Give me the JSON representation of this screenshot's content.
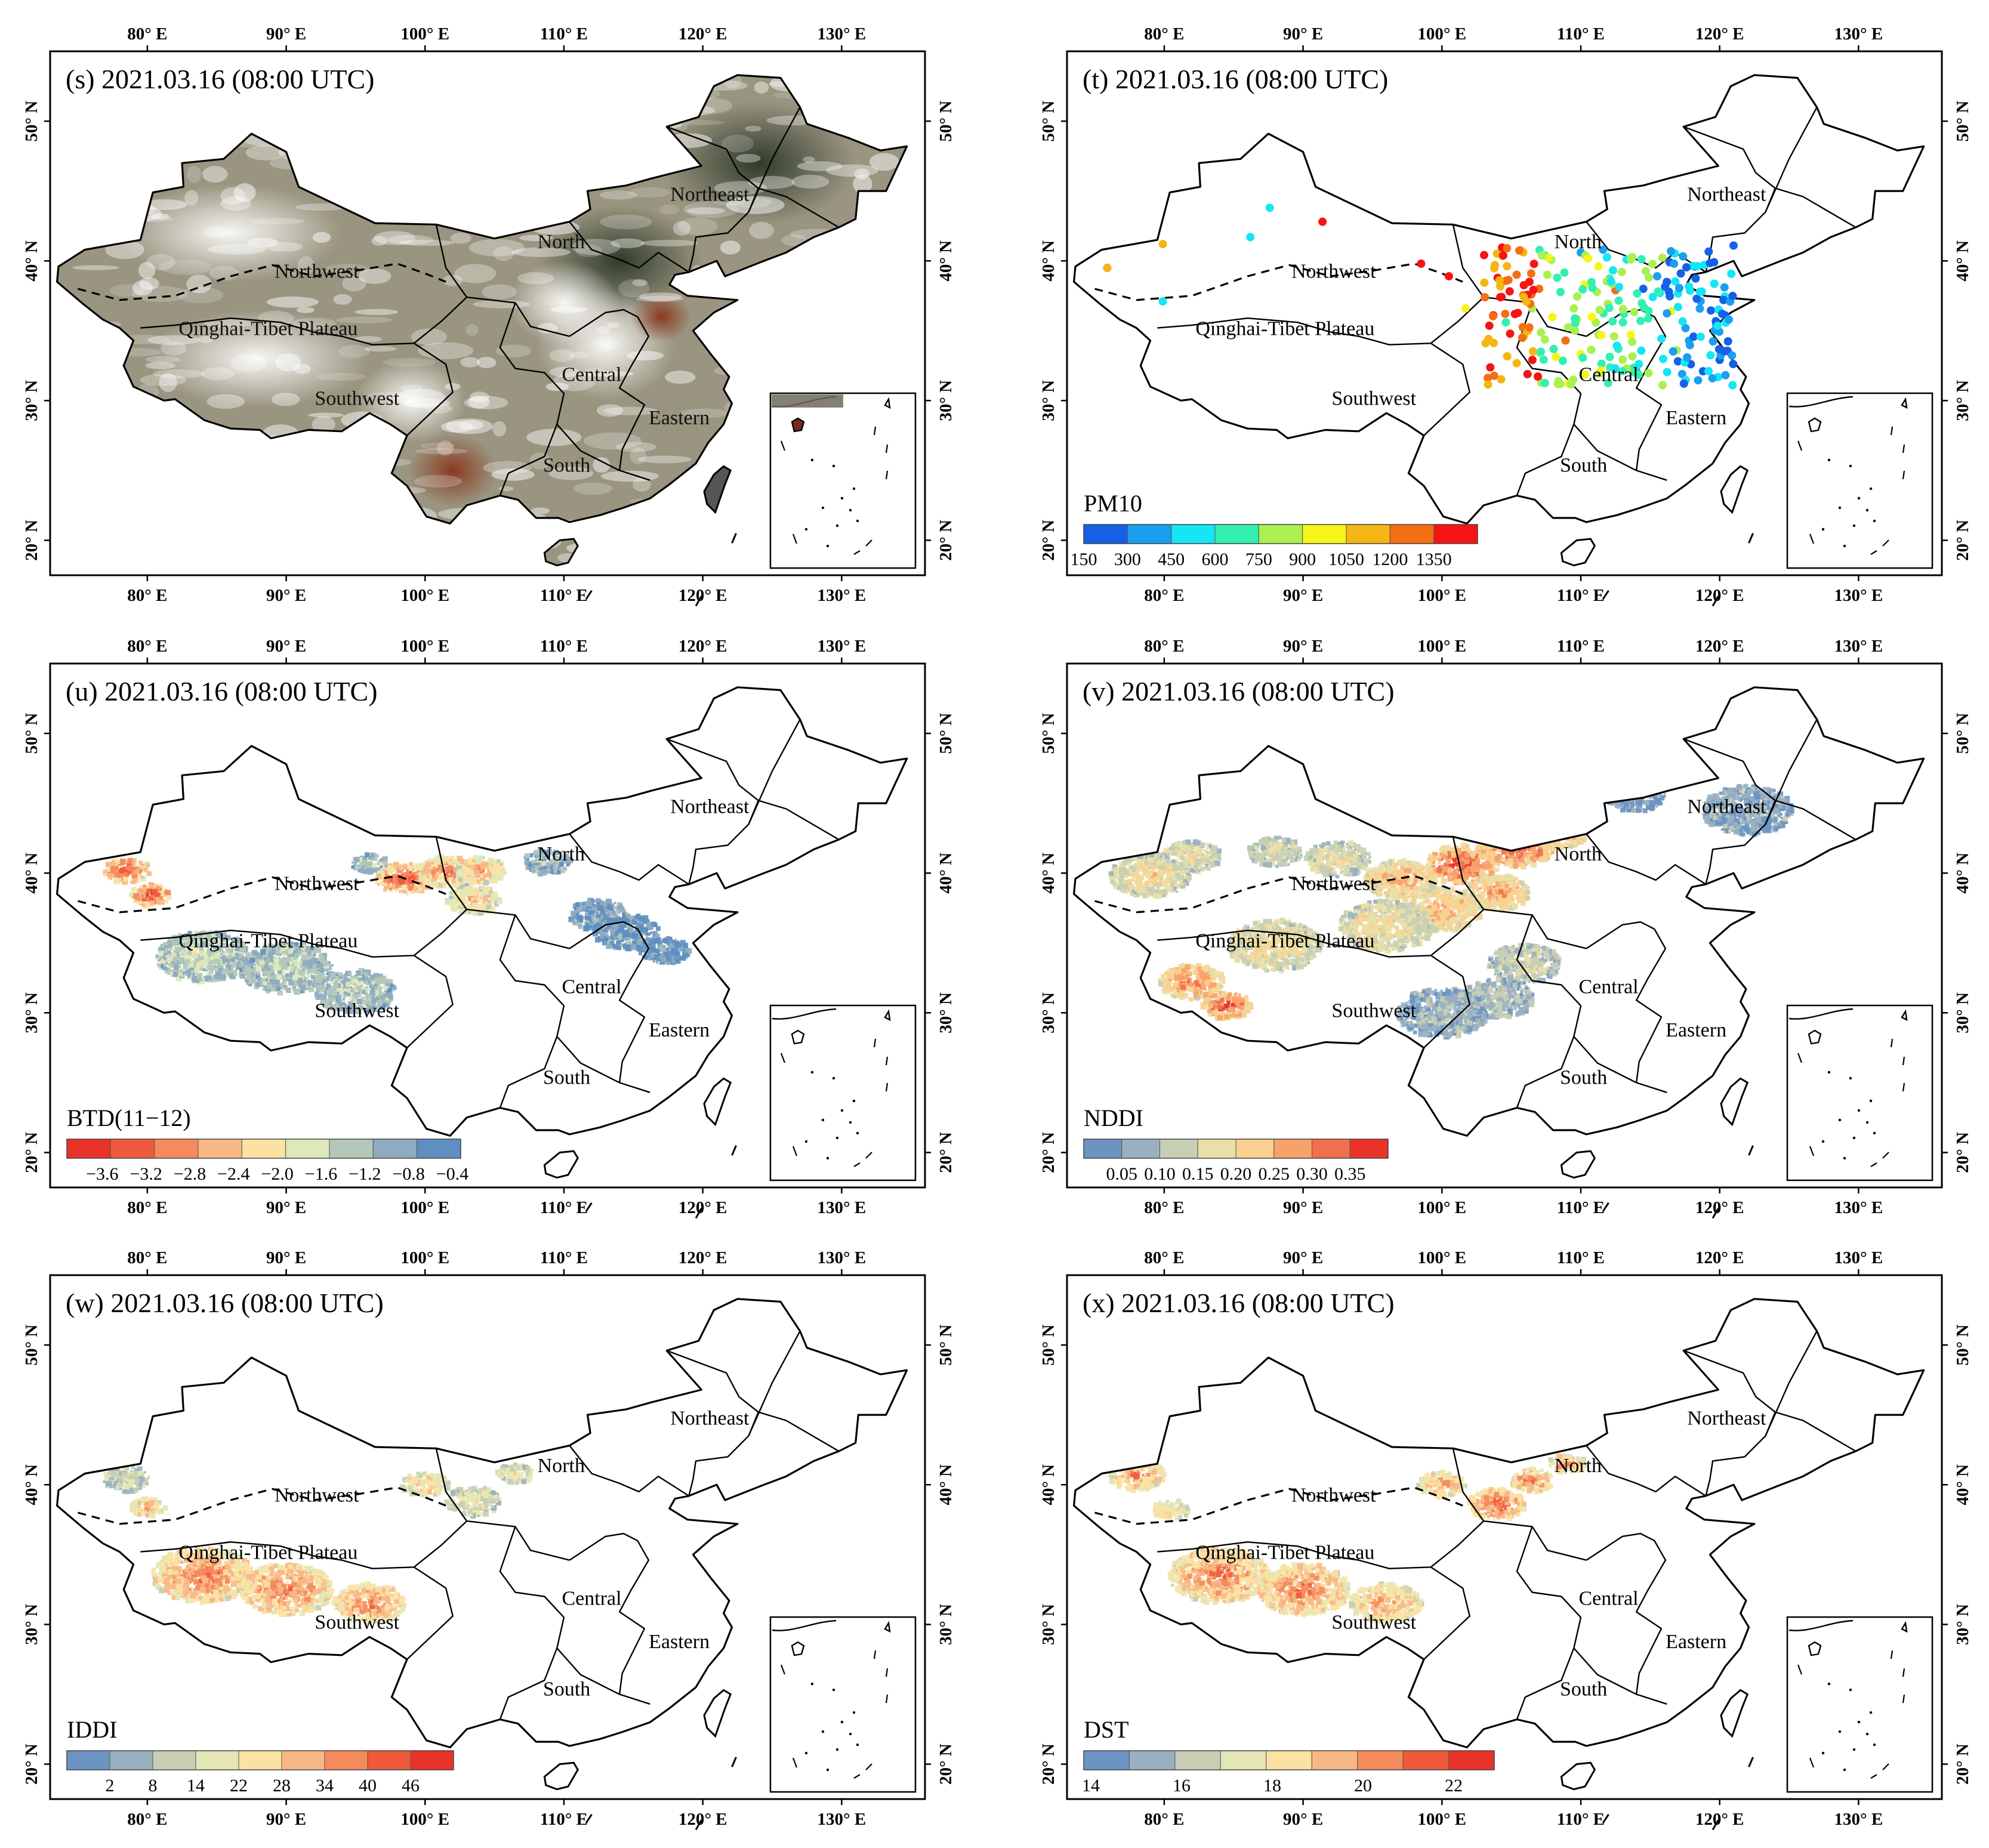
{
  "figure": {
    "lon_ticks": [
      "80° E",
      "90° E",
      "100° E",
      "110° E",
      "120° E",
      "130° E"
    ],
    "lat_ticks": [
      "50° N",
      "40° N",
      "30° N",
      "20° N"
    ],
    "regions": [
      {
        "name": "Northeast",
        "lon": 120.5,
        "lat": 44.3
      },
      {
        "name": "North",
        "lon": 109.8,
        "lat": 40.9
      },
      {
        "name": "Northwest",
        "lon": 92.2,
        "lat": 38.8
      },
      {
        "name": "Qinghai-Tibet Plateau",
        "lon": 88.7,
        "lat": 34.7
      },
      {
        "name": "Central",
        "lon": 112.0,
        "lat": 31.4
      },
      {
        "name": "Southwest",
        "lon": 95.1,
        "lat": 29.7
      },
      {
        "name": "Eastern",
        "lon": 118.3,
        "lat": 28.3
      },
      {
        "name": "South",
        "lon": 110.2,
        "lat": 24.9
      }
    ],
    "panels": [
      {
        "id": "s",
        "title": "(s) 2021.03.16 (08:00 UTC)",
        "kind": "rgb"
      },
      {
        "id": "t",
        "title": "(t) 2021.03.16 (08:00 UTC)",
        "kind": "points",
        "colorbar": {
          "label": "PM10",
          "ticks": [
            "150",
            "300",
            "450",
            "600",
            "750",
            "900",
            "1050",
            "1200",
            "1350"
          ],
          "colors": [
            "#1560e6",
            "#1aa0ee",
            "#14e6f5",
            "#33efb1",
            "#aaf050",
            "#f5f51a",
            "#f5b514",
            "#f56e14",
            "#f51414"
          ]
        }
      },
      {
        "id": "u",
        "title": "(u) 2021.03.16 (08:00 UTC)",
        "kind": "field",
        "colorbar": {
          "label": "BTD(11−12)",
          "ticks": [
            "−3.6",
            "−3.2",
            "−2.8",
            "−2.4",
            "−2.0",
            "−1.6",
            "−1.2",
            "−0.8",
            "−0.4"
          ],
          "colors": [
            "#e8322a",
            "#ef5a3c",
            "#f58a5c",
            "#f8b886",
            "#fbe2a3",
            "#dde9bb",
            "#b4c7b9",
            "#8eabbf",
            "#5e8fc0"
          ]
        }
      },
      {
        "id": "v",
        "title": "(v) 2021.03.16 (08:00 UTC)",
        "kind": "field",
        "colorbar": {
          "label": "NDDI",
          "ticks": [
            "0.05",
            "0.10",
            "0.15",
            "0.20",
            "0.25",
            "0.30",
            "0.35"
          ],
          "colors": [
            "#6b94c2",
            "#9ab0c0",
            "#c6cfb4",
            "#eadfa6",
            "#fbcf8f",
            "#f7a26b",
            "#f0704c",
            "#e8322a"
          ]
        }
      },
      {
        "id": "w",
        "title": "(w) 2021.03.16 (08:00 UTC)",
        "kind": "field",
        "colorbar": {
          "label": "IDDI",
          "ticks": [
            "2",
            "8",
            "14",
            "22",
            "28",
            "34",
            "40",
            "46"
          ],
          "colors": [
            "#6b94c2",
            "#9ab0c0",
            "#c6cfb4",
            "#e4e7b5",
            "#fbe2a3",
            "#f8b886",
            "#f58a5c",
            "#ef5a3c",
            "#e8322a"
          ]
        }
      },
      {
        "id": "x",
        "title": "(x) 2021.03.16 (08:00 UTC)",
        "kind": "field",
        "colorbar": {
          "label": "DST",
          "ticks": [
            "14",
            "16",
            "18",
            "20",
            "22"
          ],
          "colors": [
            "#6b94c2",
            "#9ab0c0",
            "#c6cfb4",
            "#e4e7b5",
            "#fbe2a3",
            "#f8b886",
            "#f58a5c",
            "#ef5a3c",
            "#e8322a"
          ]
        }
      }
    ]
  }
}
